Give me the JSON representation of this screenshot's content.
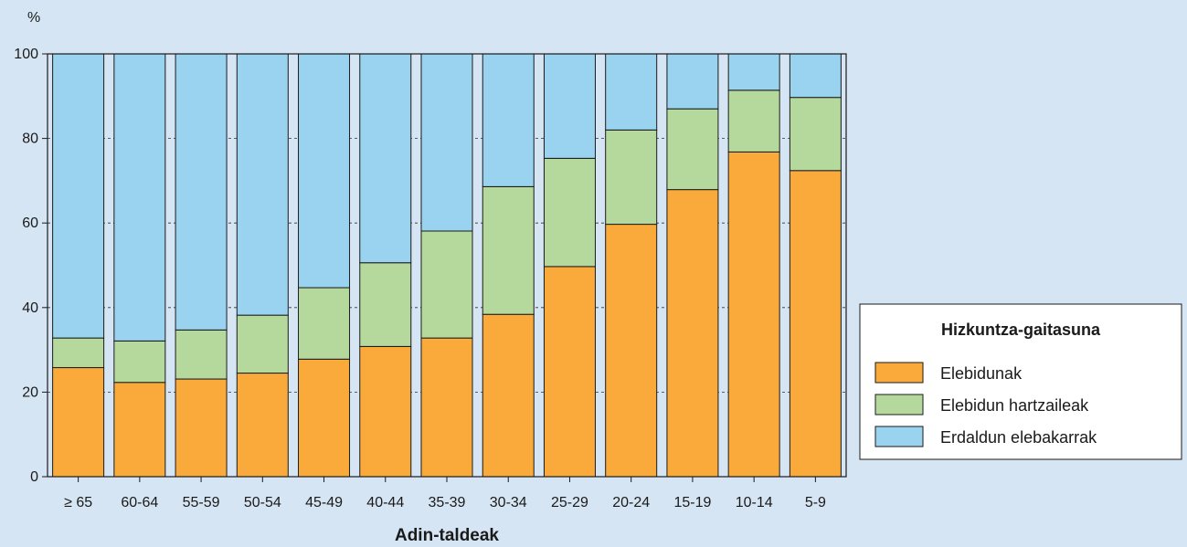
{
  "chart_data": {
    "type": "bar",
    "stacked": true,
    "unit_label": "%",
    "xlabel": "Adin-taldeak",
    "ylabel": "",
    "ylim": [
      0,
      100
    ],
    "yticks": [
      0,
      20,
      40,
      60,
      80,
      100
    ],
    "grid": "dashed horizontal",
    "categories": [
      "≥ 65",
      "60-64",
      "55-59",
      "50-54",
      "45-49",
      "40-44",
      "35-39",
      "30-34",
      "25-29",
      "20-24",
      "15-19",
      "10-14",
      "5-9"
    ],
    "series": [
      {
        "name": "Elebidunak",
        "color": "#f9aa3b",
        "values": [
          25.8,
          22.3,
          23.1,
          24.5,
          27.8,
          30.8,
          32.8,
          38.4,
          49.7,
          59.7,
          67.9,
          76.8,
          72.4
        ]
      },
      {
        "name": "Elebidun hartzaileak",
        "color": "#b5d99c",
        "values": [
          7.0,
          9.8,
          11.6,
          13.7,
          16.9,
          19.8,
          25.3,
          30.2,
          25.6,
          22.3,
          19.1,
          14.6,
          17.3
        ]
      },
      {
        "name": "Erdaldun elebakarrak",
        "color": "#99d3f0",
        "values": [
          67.2,
          67.9,
          65.3,
          61.8,
          55.3,
          49.4,
          41.9,
          31.4,
          24.7,
          18.0,
          13.0,
          8.6,
          10.3
        ]
      }
    ],
    "legend": {
      "title": "Hizkuntza-gaitasuna",
      "position": "right",
      "items": [
        "Elebidunak",
        "Elebidun hartzaileak",
        "Erdaldun elebakarrak"
      ]
    }
  }
}
